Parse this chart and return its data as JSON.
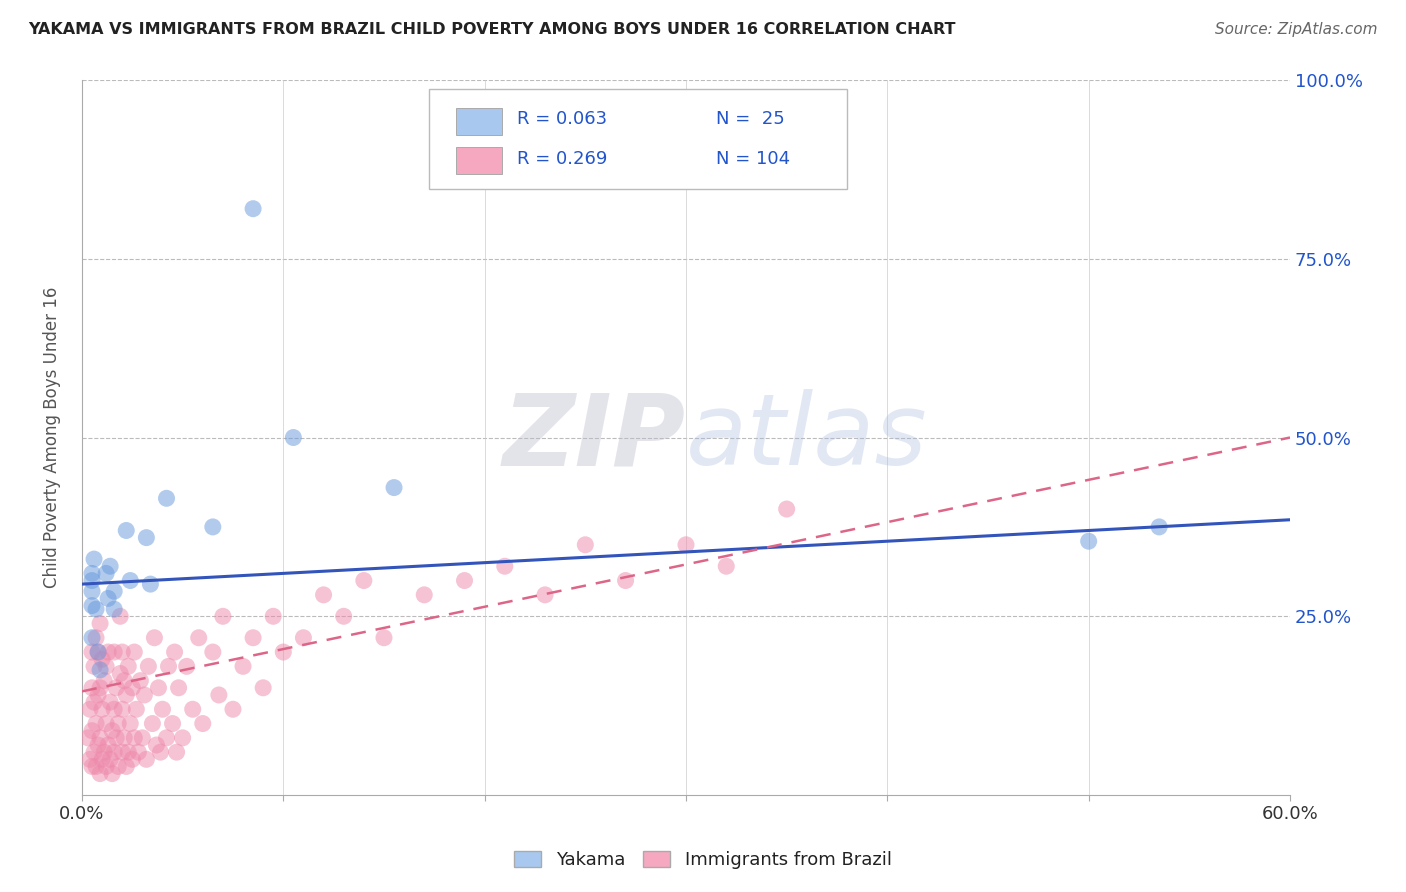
{
  "title": "YAKAMA VS IMMIGRANTS FROM BRAZIL CHILD POVERTY AMONG BOYS UNDER 16 CORRELATION CHART",
  "source": "Source: ZipAtlas.com",
  "ylabel": "Child Poverty Among Boys Under 16",
  "xlim": [
    0.0,
    0.6
  ],
  "ylim": [
    0.0,
    1.0
  ],
  "xtick_positions": [
    0.0,
    0.1,
    0.2,
    0.3,
    0.4,
    0.5,
    0.6
  ],
  "xtick_labels": [
    "0.0%",
    "",
    "",
    "",
    "",
    "",
    "60.0%"
  ],
  "ytick_positions": [
    0.0,
    0.25,
    0.5,
    0.75,
    1.0
  ],
  "ytick_labels_right": [
    "",
    "25.0%",
    "50.0%",
    "75.0%",
    "100.0%"
  ],
  "grid_hlines": [
    0.25,
    0.5,
    0.75,
    1.0
  ],
  "grid_vlines": [
    0.1,
    0.2,
    0.3,
    0.4,
    0.5,
    0.6
  ],
  "watermark_zip": "ZIP",
  "watermark_atlas": "atlas",
  "legend_items": [
    {
      "color": "#a8c8f0",
      "r_text": "R = 0.063",
      "n_text": "N =  25"
    },
    {
      "color": "#f5a8c0",
      "r_text": "R = 0.269",
      "n_text": "N = 104"
    }
  ],
  "bottom_legend": [
    {
      "label": "Yakama",
      "color": "#a8c8f0"
    },
    {
      "label": "Immigrants from Brazil",
      "color": "#f5a8c0"
    }
  ],
  "blue_scatter_color": "#6699dd",
  "pink_scatter_color": "#ee88aa",
  "blue_line_color": "#3355bb",
  "pink_line_color": "#dd6688",
  "grid_color": "#bbbbbb",
  "grid_style": "--",
  "background_color": "#ffffff",
  "title_color": "#222222",
  "source_color": "#666666",
  "rn_color": "#2255cc",
  "axis_label_color": "#555555",
  "right_tick_color": "#2255cc",
  "yakama_x": [
    0.005,
    0.005,
    0.005,
    0.005,
    0.005,
    0.006,
    0.007,
    0.008,
    0.009,
    0.012,
    0.013,
    0.014,
    0.016,
    0.016,
    0.022,
    0.024,
    0.032,
    0.034,
    0.042,
    0.065,
    0.085,
    0.105,
    0.155,
    0.5,
    0.535
  ],
  "yakama_y": [
    0.3,
    0.31,
    0.285,
    0.265,
    0.22,
    0.33,
    0.26,
    0.2,
    0.175,
    0.31,
    0.275,
    0.32,
    0.285,
    0.26,
    0.37,
    0.3,
    0.36,
    0.295,
    0.415,
    0.375,
    0.82,
    0.5,
    0.43,
    0.355,
    0.375
  ],
  "brazil_x": [
    0.003,
    0.004,
    0.004,
    0.005,
    0.005,
    0.005,
    0.005,
    0.006,
    0.006,
    0.006,
    0.007,
    0.007,
    0.007,
    0.008,
    0.008,
    0.008,
    0.009,
    0.009,
    0.009,
    0.009,
    0.01,
    0.01,
    0.01,
    0.011,
    0.011,
    0.012,
    0.012,
    0.012,
    0.013,
    0.013,
    0.014,
    0.014,
    0.015,
    0.015,
    0.016,
    0.016,
    0.016,
    0.017,
    0.017,
    0.018,
    0.018,
    0.019,
    0.019,
    0.02,
    0.02,
    0.02,
    0.021,
    0.021,
    0.022,
    0.022,
    0.023,
    0.023,
    0.024,
    0.025,
    0.025,
    0.026,
    0.026,
    0.027,
    0.028,
    0.029,
    0.03,
    0.031,
    0.032,
    0.033,
    0.035,
    0.036,
    0.037,
    0.038,
    0.039,
    0.04,
    0.042,
    0.043,
    0.045,
    0.046,
    0.047,
    0.048,
    0.05,
    0.052,
    0.055,
    0.058,
    0.06,
    0.065,
    0.068,
    0.07,
    0.075,
    0.08,
    0.085,
    0.09,
    0.095,
    0.1,
    0.11,
    0.12,
    0.13,
    0.14,
    0.15,
    0.17,
    0.19,
    0.21,
    0.23,
    0.25,
    0.27,
    0.3,
    0.32,
    0.35
  ],
  "brazil_y": [
    0.08,
    0.05,
    0.12,
    0.04,
    0.09,
    0.15,
    0.2,
    0.06,
    0.13,
    0.18,
    0.04,
    0.1,
    0.22,
    0.07,
    0.14,
    0.2,
    0.03,
    0.08,
    0.15,
    0.24,
    0.05,
    0.12,
    0.19,
    0.06,
    0.16,
    0.04,
    0.1,
    0.18,
    0.07,
    0.2,
    0.05,
    0.13,
    0.03,
    0.09,
    0.06,
    0.12,
    0.2,
    0.08,
    0.15,
    0.04,
    0.1,
    0.17,
    0.25,
    0.06,
    0.12,
    0.2,
    0.08,
    0.16,
    0.04,
    0.14,
    0.06,
    0.18,
    0.1,
    0.05,
    0.15,
    0.08,
    0.2,
    0.12,
    0.06,
    0.16,
    0.08,
    0.14,
    0.05,
    0.18,
    0.1,
    0.22,
    0.07,
    0.15,
    0.06,
    0.12,
    0.08,
    0.18,
    0.1,
    0.2,
    0.06,
    0.15,
    0.08,
    0.18,
    0.12,
    0.22,
    0.1,
    0.2,
    0.14,
    0.25,
    0.12,
    0.18,
    0.22,
    0.15,
    0.25,
    0.2,
    0.22,
    0.28,
    0.25,
    0.3,
    0.22,
    0.28,
    0.3,
    0.32,
    0.28,
    0.35,
    0.3,
    0.35,
    0.32,
    0.4
  ],
  "blue_line_x": [
    0.0,
    0.6
  ],
  "blue_line_y": [
    0.295,
    0.385
  ],
  "pink_line_x": [
    0.0,
    0.6
  ],
  "pink_line_y": [
    0.145,
    0.5
  ]
}
